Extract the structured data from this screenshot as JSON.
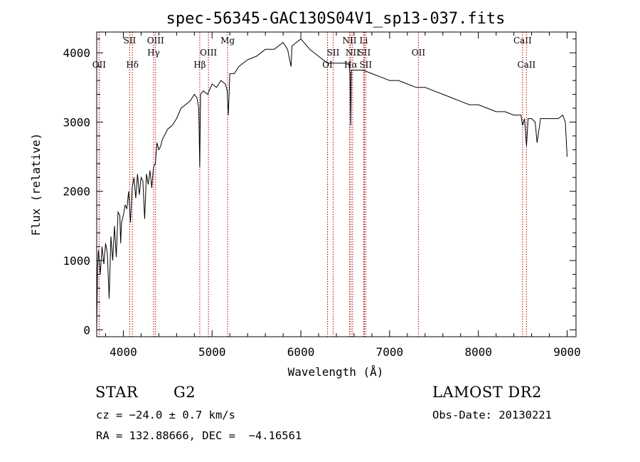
{
  "chart_data": {
    "type": "line",
    "title": "spec-56345-GAC130S04V1_sp13-037.fits",
    "xlabel": "Wavelength (Å)",
    "ylabel": "Flux (relative)",
    "xlim": [
      3700,
      9100
    ],
    "ylim": [
      -100,
      4300
    ],
    "x_ticks": [
      4000,
      5000,
      6000,
      7000,
      8000,
      9000
    ],
    "y_ticks": [
      0,
      1000,
      2000,
      3000,
      4000
    ],
    "grid": false,
    "series": [
      {
        "x": [
          3700,
          3710,
          3720,
          3740,
          3760,
          3780,
          3800,
          3820,
          3840,
          3860,
          3880,
          3900,
          3920,
          3940,
          3960,
          3970,
          3980,
          4000,
          4020,
          4040,
          4060,
          4080,
          4100,
          4120,
          4140,
          4160,
          4180,
          4200,
          4220,
          4240,
          4260,
          4280,
          4300,
          4320,
          4340,
          4360,
          4380,
          4400,
          4420,
          4440,
          4460,
          4480,
          4500,
          4550,
          4600,
          4650,
          4700,
          4750,
          4800,
          4830,
          4850,
          4861,
          4870,
          4900,
          4950,
          5000,
          5050,
          5100,
          5150,
          5170,
          5183,
          5200,
          5250,
          5300,
          5400,
          5500,
          5600,
          5700,
          5800,
          5850,
          5890,
          5900,
          5950,
          6000,
          6100,
          6200,
          6300,
          6400,
          6450,
          6500,
          6540,
          6555,
          6563,
          6570,
          6600,
          6700,
          6800,
          6900,
          7000,
          7100,
          7200,
          7300,
          7400,
          7500,
          7600,
          7700,
          7800,
          7900,
          8000,
          8100,
          8200,
          8300,
          8400,
          8480,
          8498,
          8520,
          8542,
          8560,
          8600,
          8640,
          8662,
          8700,
          8800,
          8900,
          8950,
          8980,
          9000
        ],
        "y": [
          0,
          900,
          1150,
          800,
          1200,
          950,
          1250,
          1100,
          450,
          1350,
          1000,
          1500,
          1050,
          1700,
          1650,
          1250,
          1550,
          1650,
          1800,
          1750,
          2000,
          1550,
          2050,
          2200,
          1900,
          2250,
          1950,
          2200,
          2150,
          1600,
          2250,
          2100,
          2300,
          2050,
          2350,
          2400,
          2700,
          2600,
          2650,
          2750,
          2800,
          2850,
          2900,
          2950,
          3050,
          3200,
          3250,
          3300,
          3400,
          3350,
          3200,
          2350,
          3400,
          3450,
          3400,
          3550,
          3500,
          3600,
          3550,
          3450,
          3100,
          3700,
          3700,
          3800,
          3900,
          3950,
          4050,
          4050,
          4150,
          4050,
          3800,
          4100,
          4150,
          4200,
          4050,
          3950,
          3850,
          3850,
          3850,
          3850,
          3850,
          3700,
          2950,
          3750,
          3750,
          3750,
          3700,
          3650,
          3600,
          3600,
          3550,
          3500,
          3500,
          3450,
          3400,
          3350,
          3300,
          3250,
          3250,
          3200,
          3150,
          3150,
          3100,
          3100,
          2950,
          3050,
          2650,
          3050,
          3050,
          3000,
          2700,
          3050,
          3050,
          3050,
          3100,
          3000,
          2500
        ]
      }
    ],
    "line_colors": {
      "spectrum": "#000000",
      "markers": "#b00000"
    },
    "spectral_lines": [
      {
        "label": "OII",
        "wavelength": 3727,
        "row": 3
      },
      {
        "label": "SII",
        "wavelength": 4072,
        "row": 1
      },
      {
        "label": "Hδ",
        "wavelength": 4102,
        "row": 3
      },
      {
        "label": "OIII",
        "wavelength": 4363,
        "row": 1
      },
      {
        "label": "Hγ",
        "wavelength": 4341,
        "row": 2
      },
      {
        "label": "Hβ",
        "wavelength": 4861,
        "row": 3
      },
      {
        "label": "OIII",
        "wavelength": 4959,
        "row": 2
      },
      {
        "label": "Mg",
        "wavelength": 5175,
        "row": 1
      },
      {
        "label": "OI",
        "wavelength": 6300,
        "row": 3
      },
      {
        "label": "SII",
        "wavelength": 6364,
        "row": 2
      },
      {
        "label": "NII",
        "wavelength": 6548,
        "row": 1
      },
      {
        "label": "Hα",
        "wavelength": 6563,
        "row": 3
      },
      {
        "label": "NII",
        "wavelength": 6583,
        "row": 2
      },
      {
        "label": "Li",
        "wavelength": 6708,
        "row": 1
      },
      {
        "label": "SII",
        "wavelength": 6716,
        "row": 2
      },
      {
        "label": "SII",
        "wavelength": 6731,
        "row": 3
      },
      {
        "label": "OII",
        "wavelength": 7325,
        "row": 2
      },
      {
        "label": "CaII",
        "wavelength": 8498,
        "row": 1
      },
      {
        "label": "CaII",
        "wavelength": 8542,
        "row": 3
      }
    ]
  },
  "info": {
    "object_class": "STAR",
    "subclass": "G2",
    "survey": "LAMOST DR2",
    "cz": "cz = −24.0 ± 0.7 km/s",
    "obs_date": "Obs-Date: 20130221",
    "coords": "RA = 132.88666, DEC =  −4.16561"
  }
}
